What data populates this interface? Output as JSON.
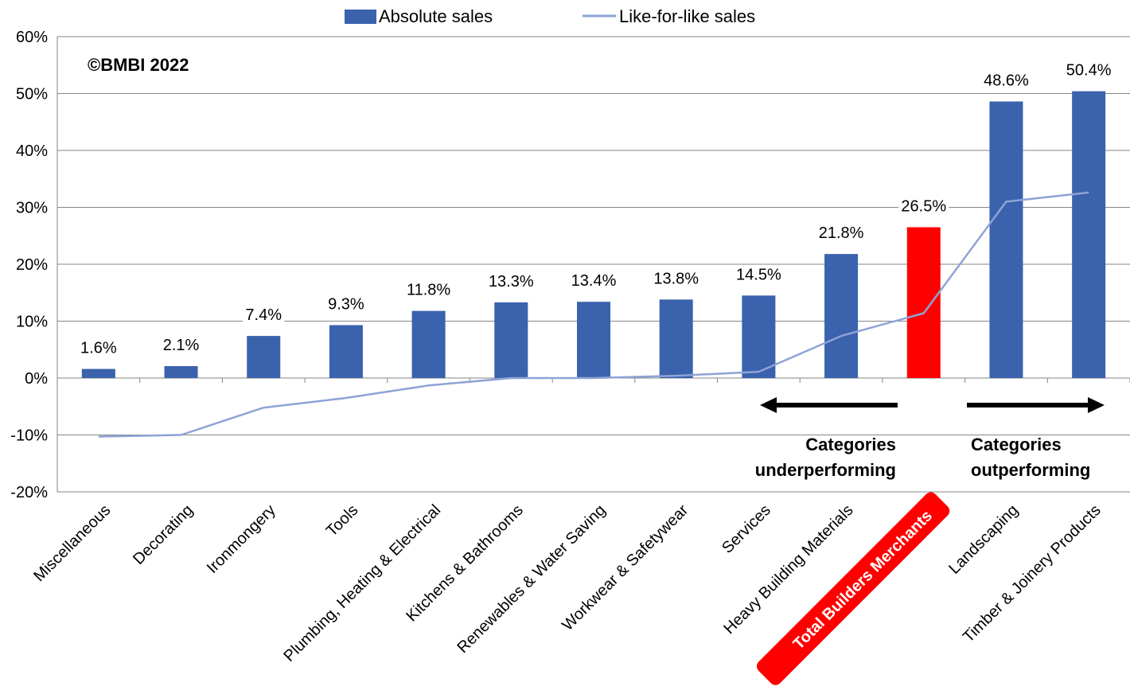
{
  "chart_data": {
    "type": "bar",
    "categories": [
      "Miscellaneous",
      "Decorating",
      "Ironmongery",
      "Tools",
      "Plumbing, Heating & Electrical",
      "Kitchens & Bathrooms",
      "Renewables & Water Saving",
      "Workwear & Safetywear",
      "Services",
      "Heavy Building Materials",
      "Total Builders Merchants",
      "Landscaping",
      "Timber & Joinery Products"
    ],
    "series": [
      {
        "name": "Absolute sales",
        "type": "bar",
        "color": "#3A62AD",
        "values": [
          1.6,
          2.1,
          7.4,
          9.3,
          11.8,
          13.3,
          13.4,
          13.8,
          14.5,
          21.8,
          26.5,
          48.6,
          50.4
        ],
        "data_labels": [
          "1.6%",
          "2.1%",
          "7.4%",
          "9.3%",
          "11.8%",
          "13.3%",
          "13.4%",
          "13.8%",
          "14.5%",
          "21.8%",
          "26.5%",
          "48.6%",
          "50.4%"
        ]
      },
      {
        "name": "Like-for-like sales",
        "type": "line",
        "color": "#8EA3D6",
        "values": [
          -10.3,
          -10.0,
          -5.2,
          -3.5,
          -1.3,
          0.0,
          0.0,
          0.4,
          1.1,
          7.4,
          11.4,
          31.0,
          32.6
        ]
      }
    ],
    "highlight": {
      "category": "Total Builders Merchants",
      "color": "#FF0000"
    },
    "ylim": [
      -20,
      60
    ],
    "y_ticks": [
      "-20%",
      "-10%",
      "0%",
      "10%",
      "20%",
      "30%",
      "40%",
      "50%",
      "60%"
    ],
    "grid": true,
    "legend_position": "top-center",
    "annotations": {
      "copyright": "©BMBI 2022",
      "underperforming": [
        "Categories",
        "underperforming"
      ],
      "outperforming": [
        "Categories",
        "outperforming"
      ]
    }
  }
}
